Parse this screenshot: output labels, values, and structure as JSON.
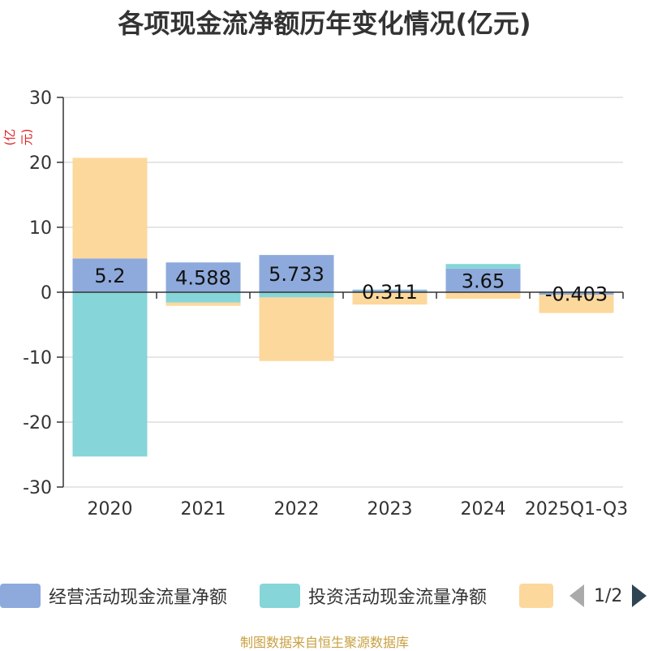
{
  "title": "各项现金流净额历年变化情况(亿元)",
  "unit": "(亿元)",
  "source": "制图数据来自恒生聚源数据库",
  "pager": {
    "text": "1/2"
  },
  "chart_data": {
    "type": "bar",
    "stacked": true,
    "categories": [
      "2020",
      "2021",
      "2022",
      "2023",
      "2024",
      "2025Q1-Q3"
    ],
    "ylim": [
      -30,
      30
    ],
    "yticks": [
      30,
      20,
      10,
      0,
      -10,
      -20,
      -30
    ],
    "grid": true,
    "legend_position": "bottom",
    "series": [
      {
        "name": "经营活动现金流量净额",
        "color": "#8eaadc",
        "values": [
          5.2,
          4.588,
          5.733,
          0.311,
          3.65,
          -0.403
        ],
        "labels": [
          "5.2",
          "4.588",
          "5.733",
          "0.311",
          "3.65",
          "-0.403"
        ]
      },
      {
        "name": "投资活动现金流量净额",
        "color": "#86d5d8",
        "values": [
          -25.3,
          -1.6,
          -0.8,
          0.1,
          0.7,
          0.1
        ]
      },
      {
        "name": "",
        "color": "#fdd89c",
        "values": [
          15.5,
          -0.5,
          -9.8,
          -1.9,
          -1.0,
          -2.8
        ]
      }
    ]
  }
}
